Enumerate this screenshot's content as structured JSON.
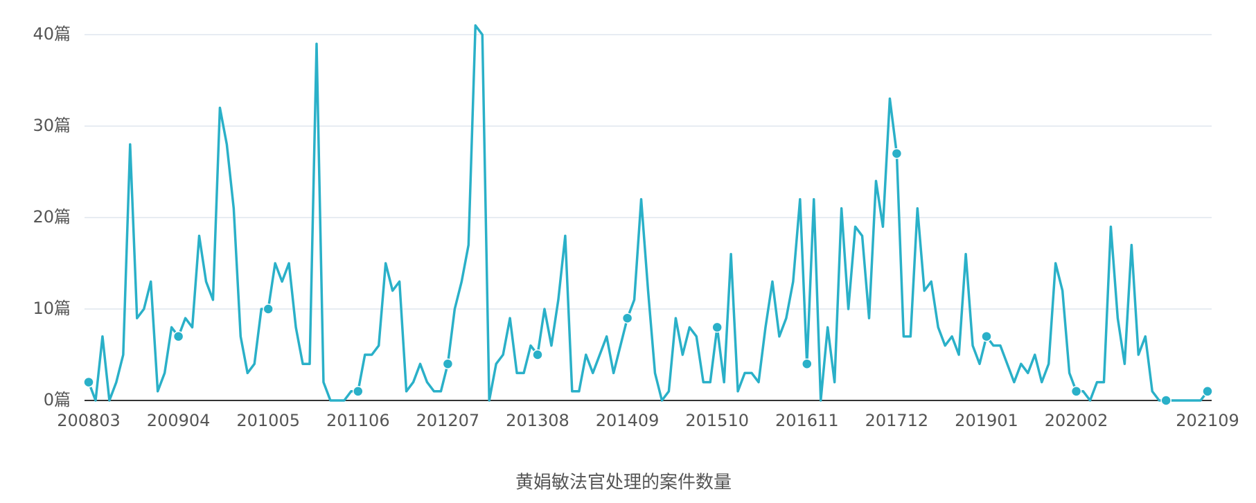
{
  "chart_data": {
    "type": "line",
    "title": "黄娟敏法官处理的案件数量",
    "categories": [
      "200803",
      null,
      null,
      null,
      null,
      null,
      null,
      null,
      null,
      null,
      null,
      null,
      null,
      "200904",
      null,
      null,
      null,
      null,
      null,
      null,
      null,
      null,
      null,
      null,
      null,
      null,
      "201005",
      null,
      null,
      null,
      null,
      null,
      null,
      null,
      null,
      null,
      null,
      null,
      null,
      "201106",
      null,
      null,
      null,
      null,
      null,
      null,
      null,
      null,
      null,
      null,
      null,
      null,
      "201207",
      null,
      null,
      null,
      null,
      null,
      null,
      null,
      null,
      null,
      null,
      null,
      null,
      "201308",
      null,
      null,
      null,
      null,
      null,
      null,
      null,
      null,
      null,
      null,
      null,
      null,
      "201409",
      null,
      null,
      null,
      null,
      null,
      null,
      null,
      null,
      null,
      null,
      null,
      null,
      "201510",
      null,
      null,
      null,
      null,
      null,
      null,
      null,
      null,
      null,
      null,
      null,
      null,
      "201611",
      null,
      null,
      null,
      null,
      null,
      null,
      null,
      null,
      null,
      null,
      null,
      null,
      "201712",
      null,
      null,
      null,
      null,
      null,
      null,
      null,
      null,
      null,
      null,
      null,
      null,
      "201901",
      null,
      null,
      null,
      null,
      null,
      null,
      null,
      null,
      null,
      null,
      null,
      null,
      "202002",
      null,
      null,
      null,
      null,
      null,
      null,
      null,
      null,
      null,
      null,
      null,
      null,
      null,
      null,
      null,
      null,
      null,
      null,
      "202109"
    ],
    "values": [
      2,
      0,
      7,
      0,
      2,
      5,
      28,
      9,
      10,
      13,
      1,
      3,
      8,
      7,
      9,
      8,
      18,
      13,
      11,
      32,
      28,
      21,
      7,
      3,
      4,
      10,
      10,
      15,
      13,
      15,
      8,
      4,
      4,
      39,
      2,
      0,
      0,
      0,
      1,
      1,
      5,
      5,
      6,
      15,
      12,
      13,
      1,
      2,
      4,
      2,
      1,
      1,
      4,
      10,
      13,
      17,
      41,
      40,
      0,
      4,
      5,
      9,
      3,
      3,
      6,
      5,
      10,
      6,
      11,
      18,
      1,
      1,
      5,
      3,
      5,
      7,
      3,
      6,
      9,
      11,
      22,
      12,
      3,
      0,
      1,
      9,
      5,
      8,
      7,
      2,
      2,
      8,
      2,
      16,
      1,
      3,
      3,
      2,
      8,
      13,
      7,
      9,
      13,
      22,
      4,
      22,
      0,
      8,
      2,
      21,
      10,
      19,
      18,
      9,
      24,
      19,
      33,
      27,
      7,
      7,
      21,
      12,
      13,
      8,
      6,
      7,
      5,
      16,
      6,
      4,
      7,
      6,
      6,
      4,
      2,
      4,
      3,
      5,
      2,
      4,
      15,
      12,
      3,
      1,
      1,
      0,
      2,
      2,
      19,
      9,
      4,
      17,
      5,
      7,
      1,
      0,
      0,
      0,
      0,
      0,
      0,
      0,
      1
    ],
    "color": "#2ab0c8",
    "ylim": [
      0,
      40
    ],
    "yticks": [
      {
        "value": 0,
        "label": "0篇"
      },
      {
        "value": 10,
        "label": "10篇"
      },
      {
        "value": 20,
        "label": "20篇"
      },
      {
        "value": 30,
        "label": "30篇"
      },
      {
        "value": 40,
        "label": "40篇"
      }
    ],
    "grid": true
  }
}
